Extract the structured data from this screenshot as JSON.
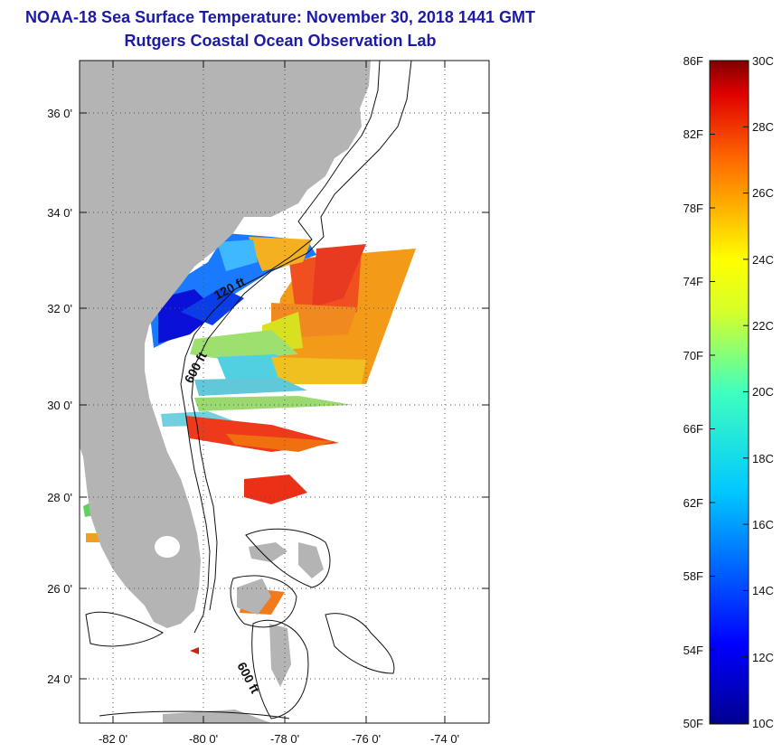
{
  "header": {
    "title": "NOAA-18 Sea Surface Temperature:  November 30, 2018 1441 GMT",
    "subtitle": "Rutgers Coastal Ocean Observation Lab"
  },
  "map": {
    "lat_labels": [
      "36 0'",
      "34 0'",
      "32 0'",
      "30 0'",
      "28 0'",
      "26 0'",
      "24 0'"
    ],
    "lon_labels": [
      "-82 0'",
      "-80 0'",
      "-78 0'",
      "-76 0'",
      "-74 0'"
    ],
    "contour_labels": [
      "120 ft",
      "600 ft",
      "600 ft"
    ],
    "land_color": "#b4b4b4",
    "water_color": "#ffffff"
  },
  "colorbar": {
    "fahrenheit_labels": [
      "86F",
      "82F",
      "78F",
      "74F",
      "70F",
      "66F",
      "62F",
      "58F",
      "54F",
      "50F"
    ],
    "celsius_labels": [
      "30C",
      "28C",
      "26C",
      "24C",
      "22C",
      "20C",
      "18C",
      "16C",
      "14C",
      "12C",
      "10C"
    ],
    "range_c": [
      10,
      30
    ],
    "colormap": "jet"
  }
}
